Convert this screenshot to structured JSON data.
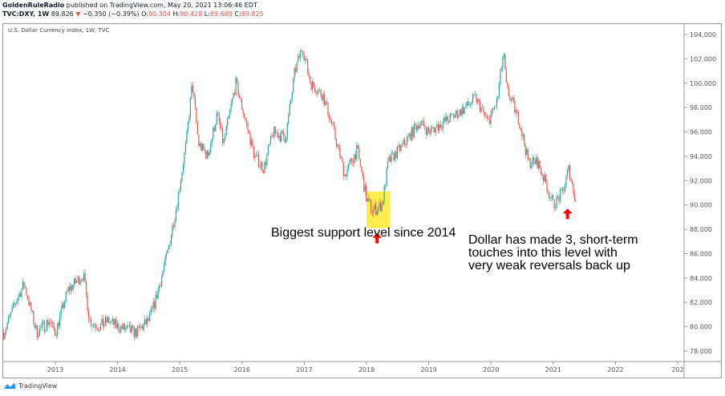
{
  "header": {
    "publisher": "GoldenRuleRadio",
    "published_text": "published on TradingView.com, May 20, 2021 13:06:46 EDT",
    "symbol": "TVC:DXY, 1W",
    "last": "89.826",
    "change": "−0.350 (−0.39%)",
    "o_label": "O:",
    "o": "90.304",
    "h_label": "H:",
    "h": "90.428",
    "l_label": "L:",
    "l": "89.688",
    "c_label": "C:",
    "c": "89.825",
    "down_color": "#ef5350"
  },
  "chart_title": "U.S. Dollar Currency Index, 1W, TVC",
  "footer": {
    "brand": "TradingView"
  },
  "annotations": {
    "left": "Biggest support level since 2014",
    "right_lines": [
      "Dollar has made 3, short-term",
      "touches into this level with",
      "very weak reversals back up"
    ]
  },
  "chart_data": {
    "type": "candlestick",
    "interval": "1W",
    "grid": false,
    "up_color": "#26a69a",
    "down_color": "#ef5350",
    "ylim": [
      77,
      105
    ],
    "y_ticks": [
      "78.000",
      "80.000",
      "82.000",
      "84.000",
      "86.000",
      "88.000",
      "90.000",
      "92.000",
      "94.000",
      "96.000",
      "98.000",
      "100.000",
      "102.000",
      "104.000"
    ],
    "x_ticks": [
      "2013",
      "2014",
      "2015",
      "2016",
      "2017",
      "2018",
      "2019",
      "2020",
      "2021",
      "2022",
      "202"
    ],
    "approx_weekly_path": [
      [
        2012.17,
        79.5
      ],
      [
        2012.4,
        82.5
      ],
      [
        2012.5,
        83.5
      ],
      [
        2012.7,
        79.5
      ],
      [
        2012.9,
        80.5
      ],
      [
        2013.0,
        79.5
      ],
      [
        2013.2,
        83
      ],
      [
        2013.45,
        84.3
      ],
      [
        2013.55,
        80.5
      ],
      [
        2013.7,
        80
      ],
      [
        2013.85,
        80.5
      ],
      [
        2014.0,
        80
      ],
      [
        2014.3,
        79.5
      ],
      [
        2014.5,
        80.5
      ],
      [
        2014.6,
        82
      ],
      [
        2014.8,
        86
      ],
      [
        2014.95,
        90
      ],
      [
        2015.1,
        95
      ],
      [
        2015.2,
        100
      ],
      [
        2015.3,
        95
      ],
      [
        2015.45,
        94
      ],
      [
        2015.6,
        97.5
      ],
      [
        2015.7,
        95
      ],
      [
        2015.9,
        100
      ],
      [
        2016.0,
        98
      ],
      [
        2016.2,
        94
      ],
      [
        2016.35,
        93
      ],
      [
        2016.5,
        96
      ],
      [
        2016.7,
        95.5
      ],
      [
        2016.85,
        101
      ],
      [
        2016.97,
        103
      ],
      [
        2017.1,
        100
      ],
      [
        2017.3,
        99
      ],
      [
        2017.45,
        96.5
      ],
      [
        2017.65,
        92.5
      ],
      [
        2017.85,
        94.5
      ],
      [
        2018.0,
        90.5
      ],
      [
        2018.1,
        89.5
      ],
      [
        2018.25,
        90
      ],
      [
        2018.35,
        93.5
      ],
      [
        2018.6,
        95
      ],
      [
        2018.85,
        96.8
      ],
      [
        2019.0,
        96
      ],
      [
        2019.3,
        97
      ],
      [
        2019.6,
        98
      ],
      [
        2019.75,
        98.8
      ],
      [
        2019.95,
        96.8
      ],
      [
        2020.1,
        98.5
      ],
      [
        2020.2,
        102.5
      ],
      [
        2020.25,
        99.5
      ],
      [
        2020.45,
        97
      ],
      [
        2020.6,
        93.5
      ],
      [
        2020.75,
        93.5
      ],
      [
        2020.9,
        91.5
      ],
      [
        2021.0,
        90
      ],
      [
        2021.15,
        91
      ],
      [
        2021.25,
        93
      ],
      [
        2021.38,
        89.8
      ]
    ],
    "highlight": {
      "x_range": [
        2018.0,
        2018.38
      ],
      "y_range": [
        88.1,
        91.1
      ],
      "color": "#ffeb3b"
    },
    "arrows": [
      [
        2018.17,
        87.3
      ],
      [
        2021.23,
        89.3
      ]
    ]
  }
}
